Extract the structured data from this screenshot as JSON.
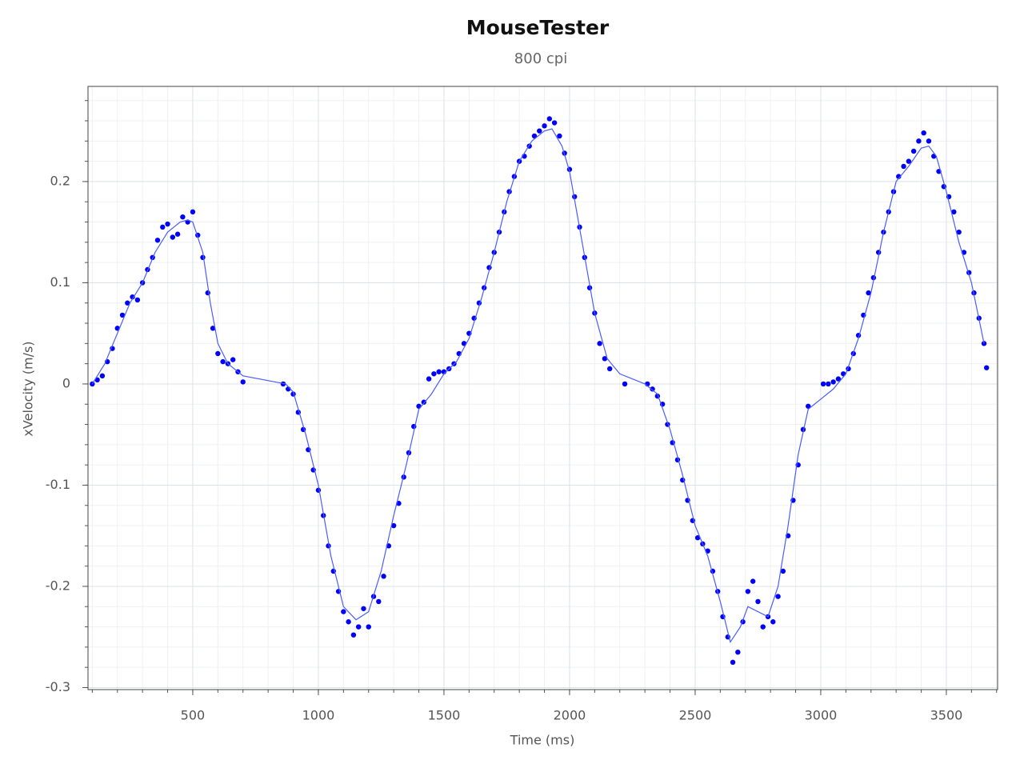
{
  "chart_data": {
    "type": "scatter",
    "title": "MouseTester",
    "subtitle": "800 cpi",
    "x_label": "Time (ms)",
    "y_label": "xVelocity (m/s)",
    "xlim": [
      83,
      3704
    ],
    "ylim": [
      -0.302,
      0.294
    ],
    "xticks": [
      500,
      1000,
      1500,
      2000,
      2500,
      3000,
      3500
    ],
    "yticks": [
      -0.3,
      -0.2,
      -0.1,
      0,
      0.1,
      0.2
    ],
    "grid": true,
    "minor_grid": true,
    "series": [
      {
        "type": "scatter",
        "color": "#0000ff",
        "x": [
          100,
          120,
          140,
          160,
          180,
          200,
          220,
          240,
          260,
          280,
          300,
          320,
          340,
          360,
          380,
          400,
          420,
          440,
          460,
          480,
          500,
          520,
          540,
          560,
          580,
          600,
          620,
          640,
          660,
          680,
          700,
          860,
          880,
          900,
          920,
          940,
          960,
          980,
          1000,
          1020,
          1040,
          1060,
          1080,
          1100,
          1120,
          1140,
          1160,
          1180,
          1200,
          1220,
          1240,
          1260,
          1280,
          1300,
          1320,
          1340,
          1360,
          1380,
          1400,
          1420,
          1440,
          1460,
          1480,
          1500,
          1520,
          1540,
          1560,
          1580,
          1600,
          1620,
          1640,
          1660,
          1680,
          1700,
          1720,
          1740,
          1760,
          1780,
          1800,
          1820,
          1840,
          1860,
          1880,
          1900,
          1920,
          1940,
          1960,
          1980,
          2000,
          2020,
          2040,
          2060,
          2080,
          2100,
          2120,
          2140,
          2160,
          2220,
          2310,
          2330,
          2350,
          2370,
          2390,
          2410,
          2430,
          2450,
          2470,
          2490,
          2510,
          2530,
          2550,
          2570,
          2590,
          2610,
          2630,
          2650,
          2670,
          2690,
          2710,
          2730,
          2750,
          2770,
          2790,
          2810,
          2830,
          2850,
          2870,
          2890,
          2910,
          2930,
          2950,
          3010,
          3030,
          3050,
          3070,
          3090,
          3110,
          3130,
          3150,
          3170,
          3190,
          3210,
          3230,
          3250,
          3270,
          3290,
          3310,
          3330,
          3350,
          3370,
          3390,
          3410,
          3430,
          3450,
          3470,
          3490,
          3510,
          3530,
          3550,
          3570,
          3590,
          3610,
          3630,
          3650,
          3660
        ],
        "values": [
          0.0,
          0.004,
          0.008,
          0.022,
          0.035,
          0.055,
          0.068,
          0.08,
          0.086,
          0.083,
          0.1,
          0.113,
          0.125,
          0.142,
          0.155,
          0.158,
          0.145,
          0.148,
          0.165,
          0.16,
          0.17,
          0.147,
          0.125,
          0.09,
          0.055,
          0.03,
          0.022,
          0.02,
          0.024,
          0.012,
          0.002,
          0.0,
          -0.005,
          -0.01,
          -0.028,
          -0.045,
          -0.065,
          -0.085,
          -0.105,
          -0.13,
          -0.16,
          -0.185,
          -0.205,
          -0.225,
          -0.235,
          -0.248,
          -0.24,
          -0.222,
          -0.24,
          -0.21,
          -0.215,
          -0.19,
          -0.16,
          -0.14,
          -0.118,
          -0.092,
          -0.068,
          -0.042,
          -0.022,
          -0.018,
          0.005,
          0.01,
          0.012,
          0.012,
          0.015,
          0.02,
          0.03,
          0.04,
          0.05,
          0.065,
          0.08,
          0.095,
          0.115,
          0.13,
          0.15,
          0.17,
          0.19,
          0.205,
          0.22,
          0.225,
          0.235,
          0.245,
          0.25,
          0.255,
          0.262,
          0.258,
          0.245,
          0.228,
          0.212,
          0.185,
          0.155,
          0.125,
          0.095,
          0.07,
          0.04,
          0.025,
          0.015,
          0.0,
          0.0,
          -0.005,
          -0.012,
          -0.02,
          -0.04,
          -0.058,
          -0.075,
          -0.095,
          -0.115,
          -0.135,
          -0.152,
          -0.158,
          -0.165,
          -0.185,
          -0.205,
          -0.23,
          -0.25,
          -0.275,
          -0.265,
          -0.235,
          -0.205,
          -0.195,
          -0.215,
          -0.24,
          -0.23,
          -0.235,
          -0.21,
          -0.185,
          -0.15,
          -0.115,
          -0.08,
          -0.045,
          -0.022,
          0.0,
          0.0,
          0.002,
          0.005,
          0.01,
          0.015,
          0.03,
          0.048,
          0.068,
          0.09,
          0.105,
          0.13,
          0.15,
          0.17,
          0.19,
          0.205,
          0.215,
          0.22,
          0.23,
          0.24,
          0.248,
          0.24,
          0.225,
          0.21,
          0.195,
          0.185,
          0.17,
          0.15,
          0.13,
          0.11,
          0.09,
          0.065,
          0.04,
          0.016
        ]
      },
      {
        "type": "line",
        "color": "#4a5cff",
        "x": [
          100,
          150,
          200,
          250,
          300,
          350,
          400,
          450,
          480,
          500,
          540,
          570,
          600,
          640,
          700,
          870,
          900,
          950,
          1000,
          1050,
          1100,
          1150,
          1200,
          1250,
          1300,
          1350,
          1400,
          1450,
          1500,
          1550,
          1600,
          1650,
          1700,
          1750,
          1800,
          1850,
          1900,
          1930,
          1970,
          2000,
          2050,
          2100,
          2150,
          2200,
          2300,
          2350,
          2400,
          2450,
          2500,
          2550,
          2600,
          2640,
          2680,
          2710,
          2750,
          2790,
          2830,
          2870,
          2910,
          2950,
          3000,
          3050,
          3100,
          3150,
          3200,
          3250,
          3300,
          3350,
          3400,
          3430,
          3460,
          3500,
          3550,
          3600,
          3650
        ],
        "values": [
          0,
          0.02,
          0.05,
          0.08,
          0.1,
          0.13,
          0.15,
          0.16,
          0.162,
          0.16,
          0.13,
          0.08,
          0.04,
          0.02,
          0.008,
          0.0,
          -0.008,
          -0.05,
          -0.1,
          -0.17,
          -0.22,
          -0.233,
          -0.225,
          -0.185,
          -0.13,
          -0.08,
          -0.025,
          -0.01,
          0.01,
          0.022,
          0.045,
          0.085,
          0.13,
          0.18,
          0.22,
          0.24,
          0.25,
          0.252,
          0.235,
          0.21,
          0.14,
          0.07,
          0.025,
          0.01,
          0.0,
          -0.01,
          -0.045,
          -0.09,
          -0.14,
          -0.17,
          -0.215,
          -0.255,
          -0.24,
          -0.22,
          -0.225,
          -0.23,
          -0.2,
          -0.14,
          -0.07,
          -0.025,
          -0.015,
          -0.005,
          0.01,
          0.045,
          0.09,
          0.15,
          0.2,
          0.215,
          0.233,
          0.235,
          0.225,
          0.19,
          0.14,
          0.1,
          0.04
        ]
      }
    ]
  }
}
